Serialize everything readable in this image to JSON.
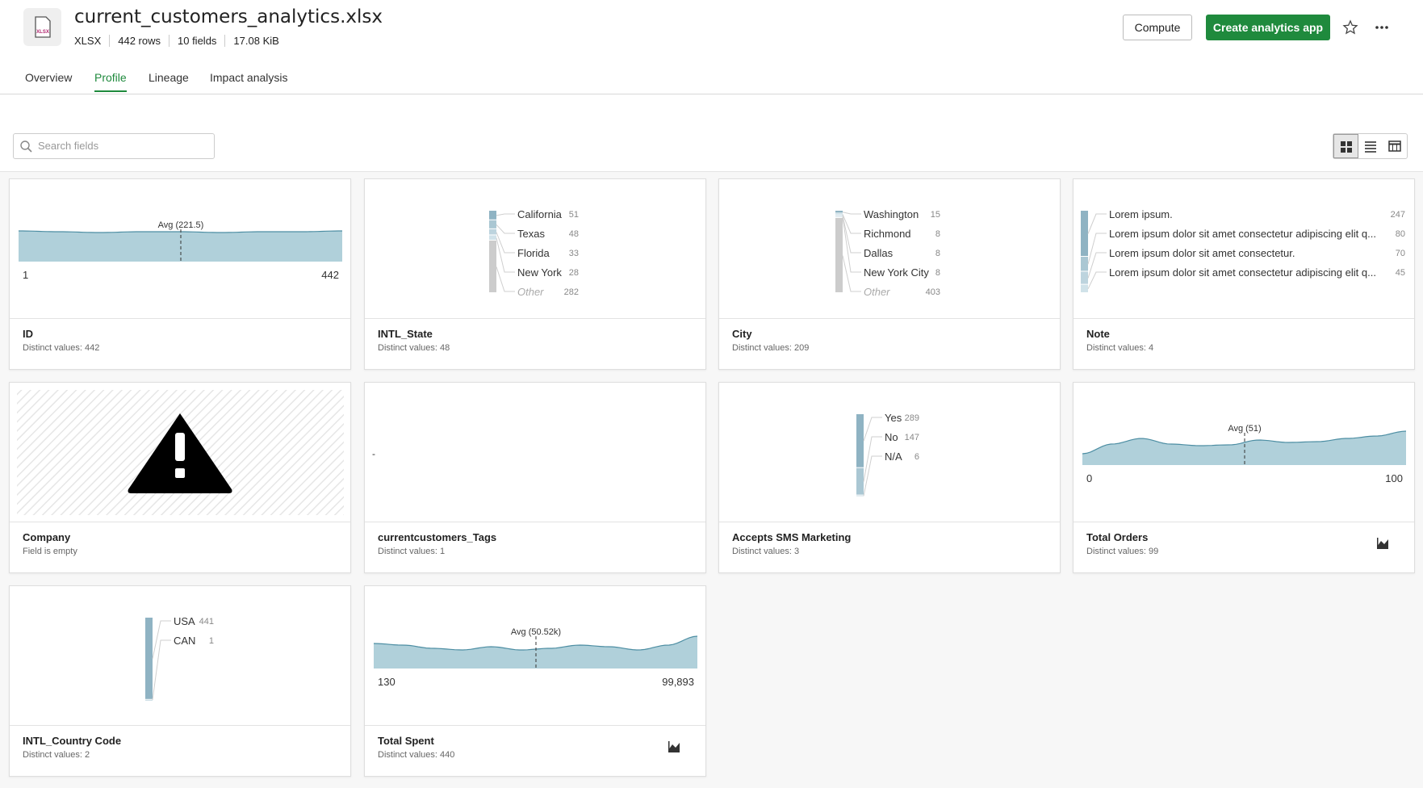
{
  "header": {
    "file_name": "current_customers_analytics.xlsx",
    "file_type_icon": "XLSX",
    "meta": [
      "XLSX",
      "442 rows",
      "10 fields",
      "17.08 KiB"
    ]
  },
  "actions": {
    "compute": "Compute",
    "create": "Create analytics app"
  },
  "tabs": [
    "Overview",
    "Profile",
    "Lineage",
    "Impact analysis"
  ],
  "active_tab": 1,
  "search_placeholder": "Search fields",
  "fields": [
    {
      "name": "ID",
      "subtitle": "Distinct values: 442",
      "kind": "density",
      "avg_label": "Avg (221.5)",
      "min": "1",
      "max": "442",
      "chart_icon": false
    },
    {
      "name": "INTL_State",
      "subtitle": "Distinct values: 48",
      "kind": "frequency",
      "items": [
        {
          "label": "California",
          "count": 51
        },
        {
          "label": "Texas",
          "count": 48
        },
        {
          "label": "Florida",
          "count": 33
        },
        {
          "label": "New York",
          "count": 28
        }
      ],
      "other": {
        "label": "Other",
        "count": 282
      }
    },
    {
      "name": "City",
      "subtitle": "Distinct values: 209",
      "kind": "frequency",
      "items": [
        {
          "label": "Washington",
          "count": 15
        },
        {
          "label": "Richmond",
          "count": 8
        },
        {
          "label": "Dallas",
          "count": 8
        },
        {
          "label": "New York City",
          "count": 8
        }
      ],
      "other": {
        "label": "Other",
        "count": 403
      }
    },
    {
      "name": "Note",
      "subtitle": "Distinct values: 4",
      "kind": "frequency",
      "items": [
        {
          "label": "Lorem ipsum.",
          "count": 247
        },
        {
          "label": "Lorem ipsum dolor sit amet consectetur adipiscing elit q...",
          "count": 80
        },
        {
          "label": "Lorem ipsum dolor sit amet consectetur.",
          "count": 70
        },
        {
          "label": "Lorem ipsum dolor sit amet consectetur adipiscing elit q...",
          "count": 45
        }
      ]
    },
    {
      "name": "Company",
      "subtitle": "Field is empty",
      "kind": "empty"
    },
    {
      "name": "currentcustomers_Tags",
      "subtitle": "Distinct values: 1",
      "kind": "single",
      "value": "-"
    },
    {
      "name": "Accepts SMS Marketing",
      "subtitle": "Distinct values: 3",
      "kind": "frequency",
      "items": [
        {
          "label": "Yes",
          "count": 289
        },
        {
          "label": "No",
          "count": 147
        },
        {
          "label": "N/A",
          "count": 6
        }
      ]
    },
    {
      "name": "Total Orders",
      "subtitle": "Distinct values: 99",
      "kind": "density",
      "avg_label": "Avg (51)",
      "min": "0",
      "max": "100",
      "chart_icon": true
    },
    {
      "name": "INTL_Country Code",
      "subtitle": "Distinct values: 2",
      "kind": "frequency",
      "items": [
        {
          "label": "USA",
          "count": 441
        },
        {
          "label": "CAN",
          "count": 1
        }
      ]
    },
    {
      "name": "Total Spent",
      "subtitle": "Distinct values: 440",
      "kind": "density",
      "avg_label": "Avg (50.52k)",
      "min": "130",
      "max": "99,893",
      "chart_icon": true
    }
  ]
}
